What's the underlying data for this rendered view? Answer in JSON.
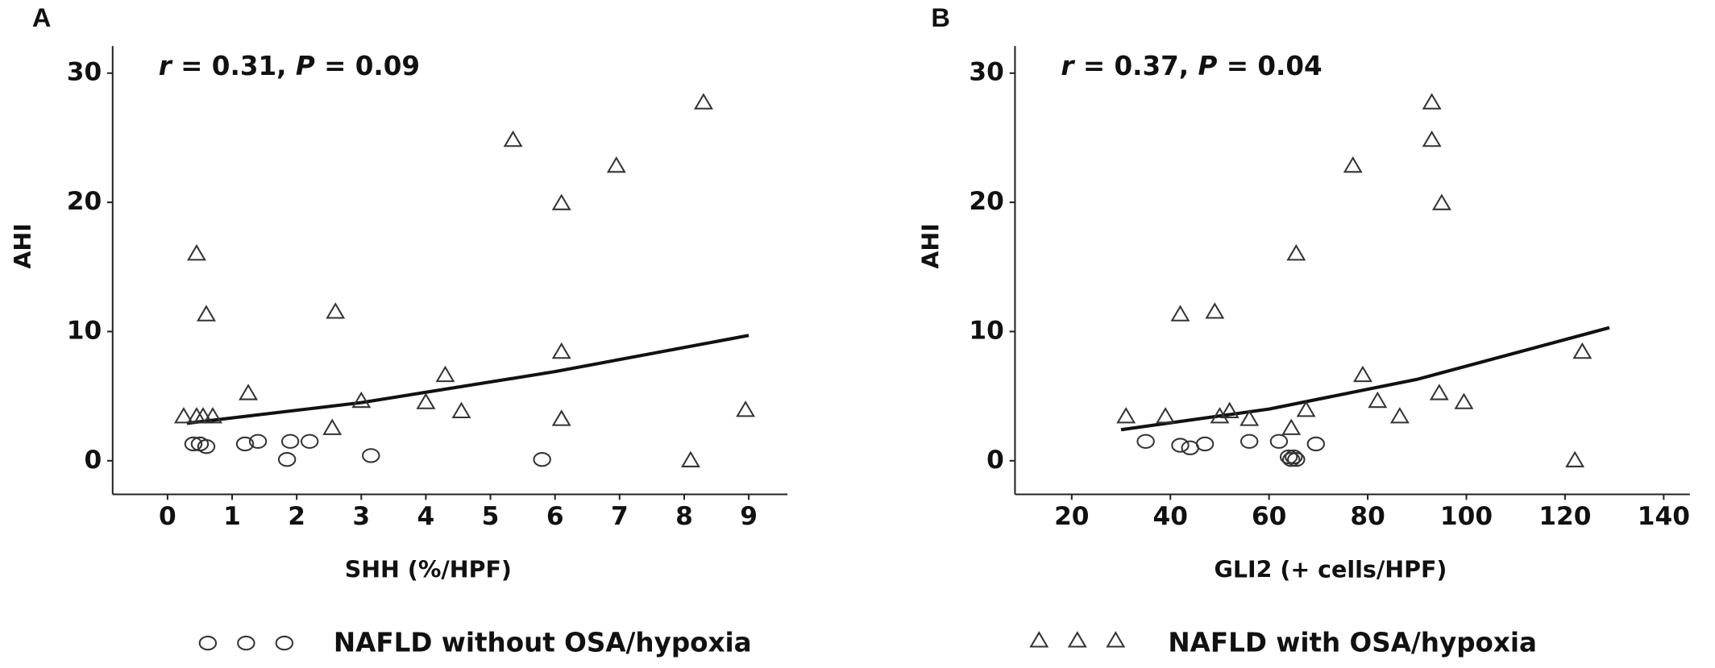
{
  "chart_data": [
    {
      "type": "scatter",
      "panel_label": "A",
      "annotation": [
        "r",
        " = 0.31, ",
        "P",
        " = 0.09"
      ],
      "x_label": "SHH (%/HPF)",
      "y_label": "AHI",
      "xlim": [
        -0.85,
        9.6
      ],
      "ylim": [
        -2.6,
        32.1
      ],
      "xticks": [
        0,
        1,
        2,
        3,
        4,
        5,
        6,
        7,
        8,
        9
      ],
      "yticks": [
        0,
        10,
        20,
        30
      ],
      "grid": false,
      "series": [
        {
          "name": "NAFLD without OSA/hypoxia",
          "marker": "circle",
          "color": "#333333",
          "x": [
            0.4,
            0.5,
            0.6,
            1.2,
            1.4,
            1.85,
            1.9,
            2.2,
            3.15,
            5.8
          ],
          "values": [
            1.3,
            1.3,
            1.1,
            1.3,
            1.5,
            0.1,
            1.5,
            1.5,
            0.4,
            0.1
          ]
        },
        {
          "name": "NAFLD with OSA/hypoxia",
          "marker": "triangle",
          "color": "#333333",
          "x": [
            0.25,
            0.45,
            0.55,
            0.7,
            0.45,
            0.6,
            1.25,
            2.55,
            2.6,
            3.0,
            4.0,
            4.3,
            4.55,
            5.35,
            6.1,
            6.1,
            6.1,
            6.95,
            8.1,
            8.3,
            8.95
          ],
          "values": [
            3.4,
            3.4,
            3.4,
            3.4,
            16,
            11.3,
            5.2,
            2.5,
            11.5,
            4.6,
            4.5,
            6.6,
            3.8,
            24.8,
            19.9,
            8.4,
            3.2,
            22.8,
            0,
            27.7,
            3.9
          ]
        }
      ],
      "fit": {
        "color": "#111111",
        "x": [
          0.3,
          3,
          6,
          9
        ],
        "values": [
          2.9,
          4.5,
          6.9,
          9.7
        ]
      }
    },
    {
      "type": "scatter",
      "panel_label": "B",
      "annotation": [
        "r",
        " = 0.37, ",
        "P",
        " = 0.04"
      ],
      "x_label": "GLI2 (+ cells/HPF)",
      "y_label": "AHI",
      "xlim": [
        8.5,
        145.3
      ],
      "ylim": [
        -2.6,
        32.1
      ],
      "xticks": [
        20,
        40,
        60,
        80,
        100,
        120,
        140
      ],
      "yticks": [
        0,
        10,
        20,
        30
      ],
      "grid": false,
      "series": [
        {
          "marker": "circle",
          "color": "#333333",
          "x": [
            35,
            42,
            44,
            47,
            56,
            62,
            64,
            64.5,
            65,
            65.5,
            69.5
          ],
          "values": [
            1.5,
            1.2,
            1.0,
            1.3,
            1.5,
            1.5,
            0.3,
            0.1,
            0.3,
            0.1,
            1.3
          ]
        },
        {
          "marker": "triangle",
          "color": "#333333",
          "x": [
            31,
            39,
            42,
            49,
            50,
            52,
            56,
            64.5,
            65.5,
            67.5,
            77,
            79,
            82,
            86.5,
            93,
            93,
            94.5,
            95,
            99.5,
            122,
            123.5
          ],
          "values": [
            3.4,
            3.4,
            11.3,
            11.5,
            3.4,
            3.8,
            3.2,
            2.5,
            16,
            3.9,
            22.8,
            6.6,
            4.6,
            3.4,
            24.8,
            27.7,
            5.2,
            19.9,
            4.5,
            0,
            8.4
          ]
        }
      ],
      "fit": {
        "color": "#111111",
        "x": [
          30,
          60,
          90,
          129
        ],
        "values": [
          2.4,
          4.0,
          6.3,
          10.3
        ]
      }
    }
  ]
}
